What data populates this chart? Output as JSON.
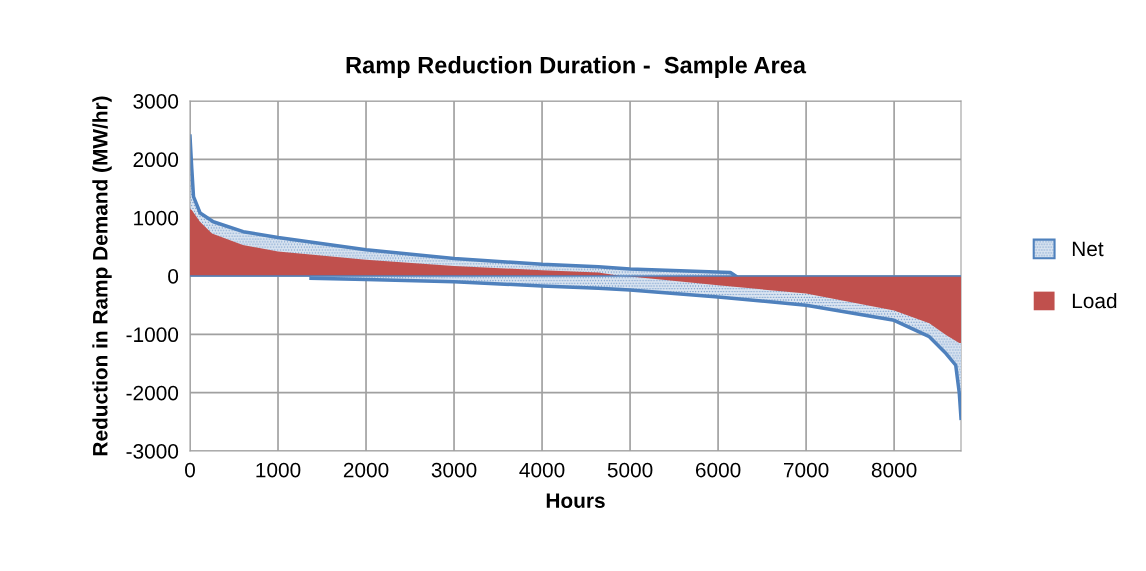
{
  "chart_data": {
    "type": "area",
    "title": "Ramp Reduction Duration -  Sample Area",
    "xlabel": "Hours",
    "ylabel": "Reduction in Ramp Demand (MW/hr)",
    "series": [
      {
        "name": "Net",
        "color": "#4f81bd",
        "x": [
          0,
          20,
          40,
          115,
          265,
          605,
          1000,
          2000,
          3000,
          4000,
          4640,
          5000,
          6140,
          6200
        ],
        "values": [
          2400,
          1850,
          1360,
          1080,
          930,
          760,
          660,
          450,
          300,
          200,
          160,
          120,
          60,
          0
        ]
      },
      {
        "color": "#4f81bd",
        "x": [
          1375,
          2000,
          3000,
          4000,
          4640,
          5000,
          6000,
          7000,
          8000,
          8400,
          8590,
          8700,
          8740,
          8760
        ],
        "values": [
          -40,
          -60,
          -100,
          -170,
          -210,
          -240,
          -360,
          -500,
          -760,
          -1040,
          -1330,
          -1530,
          -2000,
          -2440
        ]
      },
      {
        "name": "Load",
        "color": "#c0504d",
        "x": [
          0,
          20,
          113,
          250,
          600,
          1000,
          2000,
          3000,
          4000,
          4640,
          4900,
          5000,
          6000,
          7000,
          8000,
          8400,
          8590,
          8740,
          8760
        ],
        "values": [
          1150,
          1130,
          930,
          730,
          530,
          420,
          280,
          170,
          100,
          60,
          0,
          -10,
          -160,
          -300,
          -590,
          -810,
          -1010,
          -1150,
          -1150
        ]
      }
    ],
    "xlim": [
      0,
      8760
    ],
    "xticks": [
      0,
      1000,
      2000,
      3000,
      4000,
      5000,
      6000,
      7000,
      8000
    ],
    "ylim": [
      -3000,
      3000
    ],
    "yticks": [
      -3000,
      -2000,
      -1000,
      0,
      1000,
      2000,
      3000
    ],
    "ref_lines": [
      {
        "axis": "y",
        "value": 0,
        "color": "#4f81bd"
      }
    ],
    "grid": true,
    "legend": "right"
  }
}
